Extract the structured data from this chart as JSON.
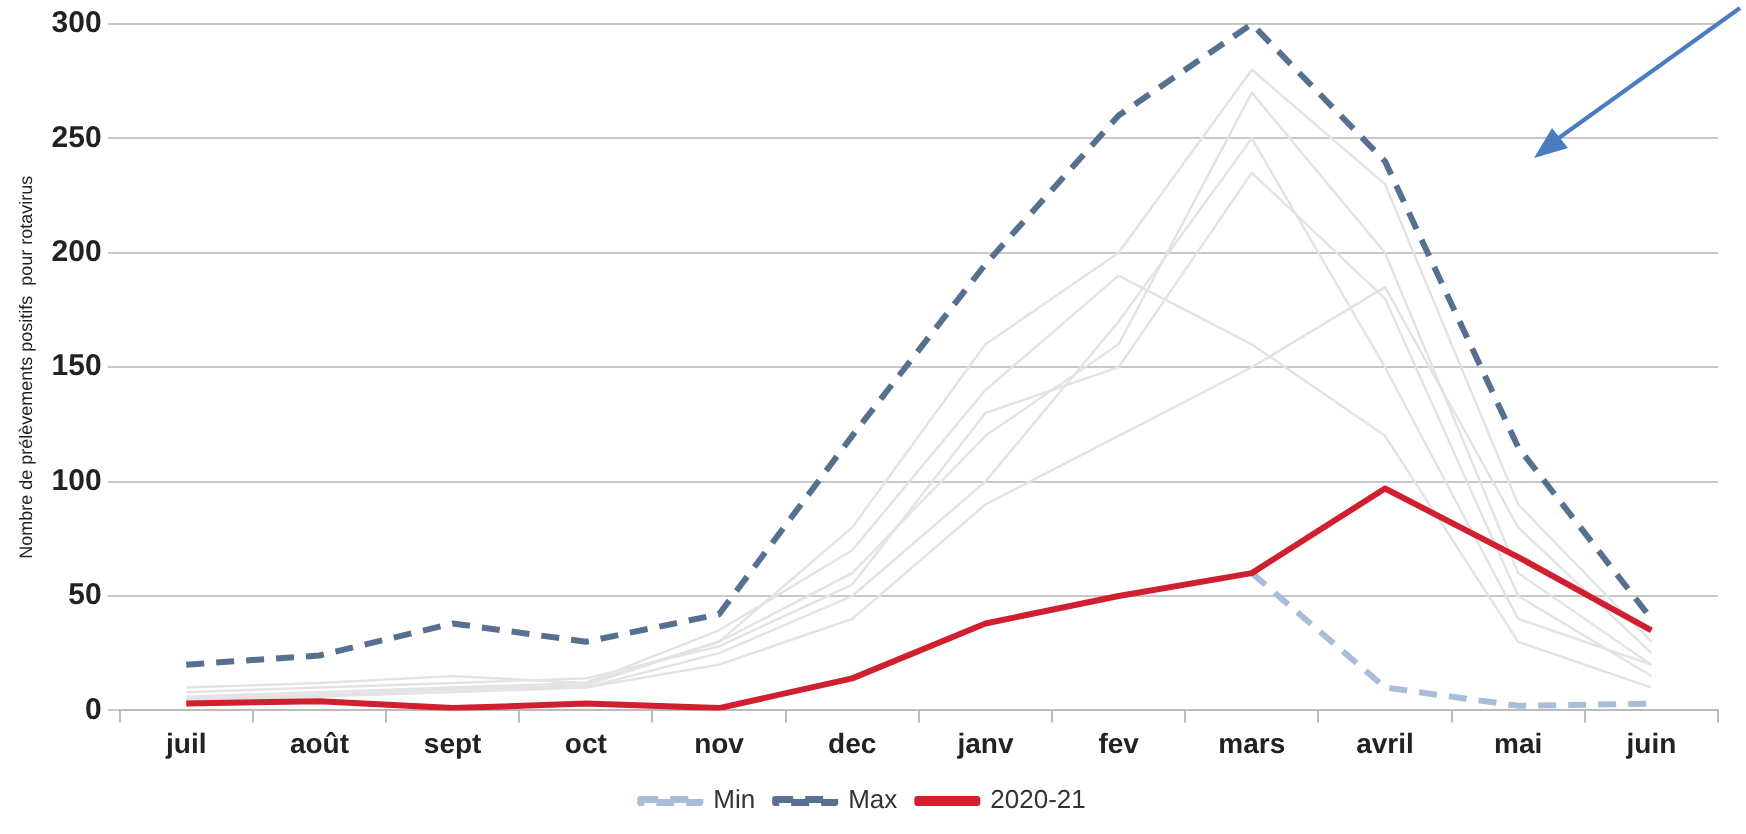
{
  "chart_data": {
    "type": "line",
    "ylabel": "Nombre de prélèvements positifs  pour rotavirus",
    "categories": [
      "juil",
      "août",
      "sept",
      "oct",
      "nov",
      "dec",
      "janv",
      "fev",
      "mars",
      "avril",
      "mai",
      "juin"
    ],
    "ylim": [
      0,
      300
    ],
    "yticks": [
      0,
      50,
      100,
      150,
      200,
      250,
      300
    ],
    "grid": "y",
    "legend": "bottom",
    "marker": "none",
    "series": [
      {
        "color": "#e3e3e3",
        "values": [
          5,
          6,
          10,
          12,
          30,
          60,
          120,
          160,
          270,
          200,
          60,
          20
        ]
      },
      {
        "color": "#e3e3e3",
        "values": [
          8,
          10,
          12,
          14,
          28,
          55,
          130,
          150,
          235,
          180,
          50,
          15
        ]
      },
      {
        "color": "#e3e3e3",
        "values": [
          6,
          8,
          10,
          10,
          25,
          50,
          100,
          170,
          250,
          150,
          40,
          20
        ]
      },
      {
        "color": "#e3e3e3",
        "values": [
          10,
          12,
          15,
          12,
          35,
          70,
          140,
          190,
          160,
          120,
          30,
          10
        ]
      },
      {
        "color": "#e3e3e3",
        "values": [
          4,
          6,
          8,
          10,
          20,
          40,
          90,
          120,
          150,
          185,
          80,
          25
        ]
      },
      {
        "color": "#e3e3e3",
        "values": [
          5,
          7,
          9,
          11,
          30,
          80,
          160,
          200,
          280,
          230,
          90,
          30
        ]
      },
      {
        "name": "Min",
        "color": "#a9bcd8",
        "line_style": "dashed",
        "values": [
          null,
          null,
          null,
          null,
          null,
          null,
          null,
          null,
          60,
          10,
          2,
          3
        ]
      },
      {
        "name": "Max",
        "color": "#56708f",
        "line_style": "dashed",
        "values": [
          20,
          24,
          38,
          30,
          42,
          120,
          195,
          260,
          300,
          240,
          115,
          40
        ]
      },
      {
        "name": "2020-21",
        "color": "#d0202f",
        "line_style": "solid",
        "values": [
          3,
          4,
          1,
          3,
          1,
          14,
          38,
          50,
          60,
          97,
          67,
          35
        ]
      }
    ]
  }
}
